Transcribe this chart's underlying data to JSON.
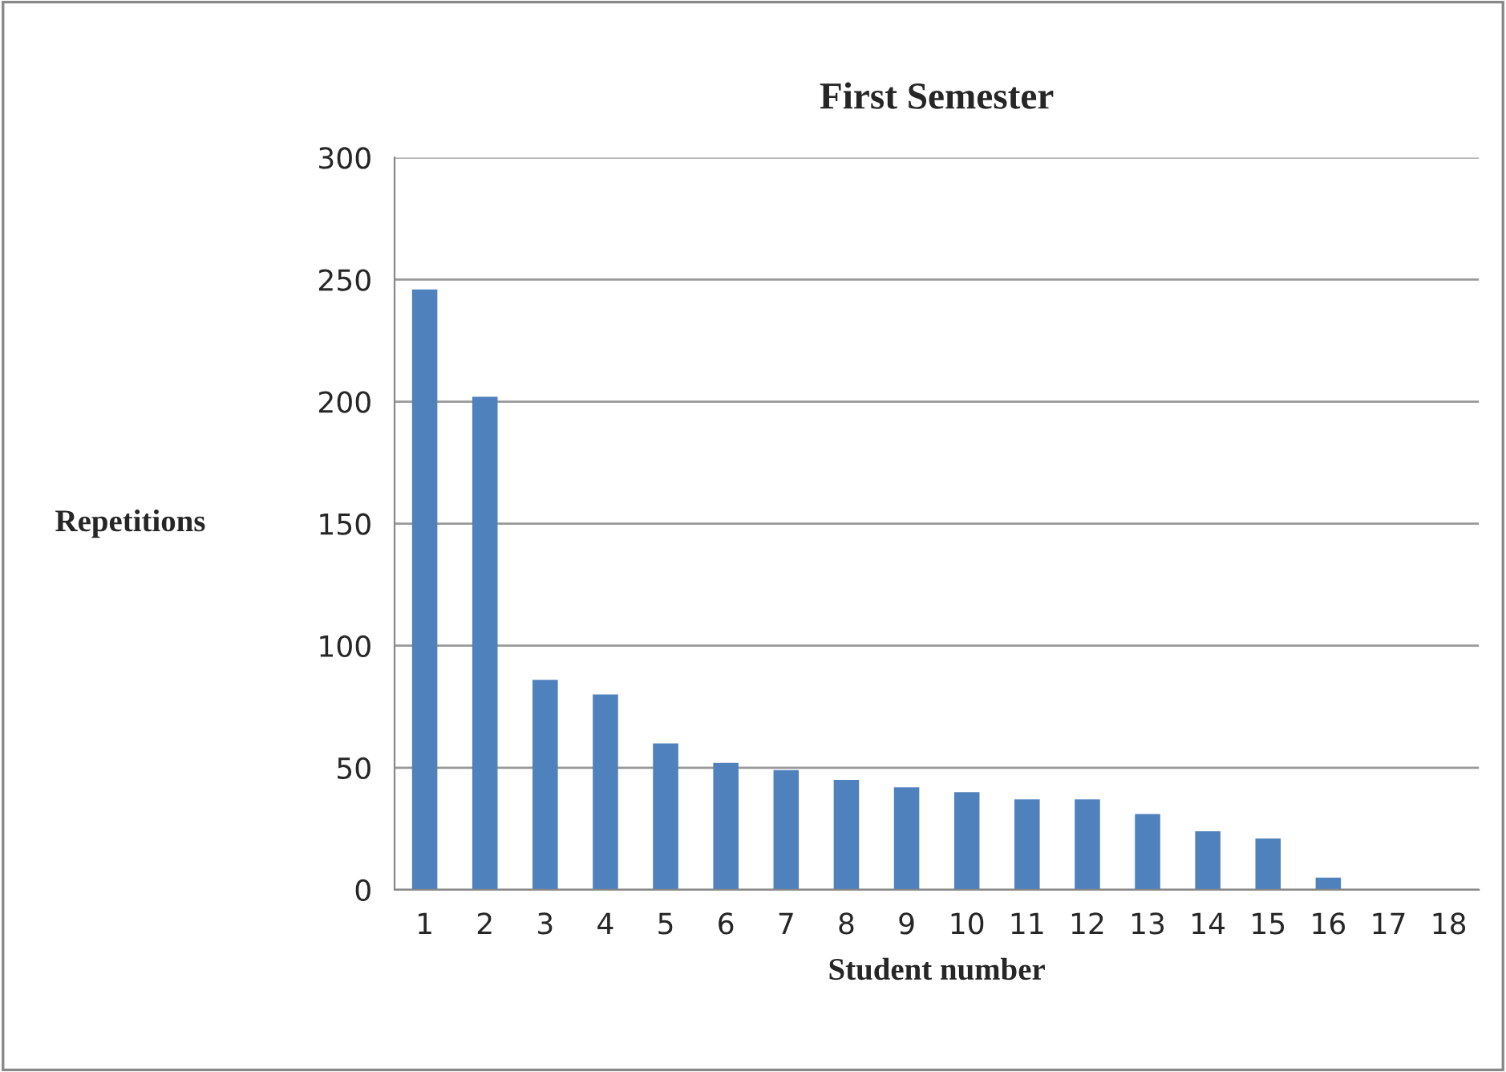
{
  "chart_data": {
    "type": "bar",
    "title": "First Semester",
    "xlabel": "Student number",
    "ylabel": "Repetitions",
    "categories": [
      "1",
      "2",
      "3",
      "4",
      "5",
      "6",
      "7",
      "8",
      "9",
      "10",
      "11",
      "12",
      "13",
      "14",
      "15",
      "16",
      "17",
      "18"
    ],
    "values": [
      246,
      202,
      86,
      80,
      60,
      52,
      49,
      45,
      42,
      40,
      37,
      37,
      31,
      24,
      21,
      5,
      0,
      0
    ],
    "color": "#4f81bd",
    "ylim": [
      0,
      300
    ],
    "yticks": [
      0,
      50,
      100,
      150,
      200,
      250,
      300
    ],
    "grid": "y",
    "legend": false
  }
}
